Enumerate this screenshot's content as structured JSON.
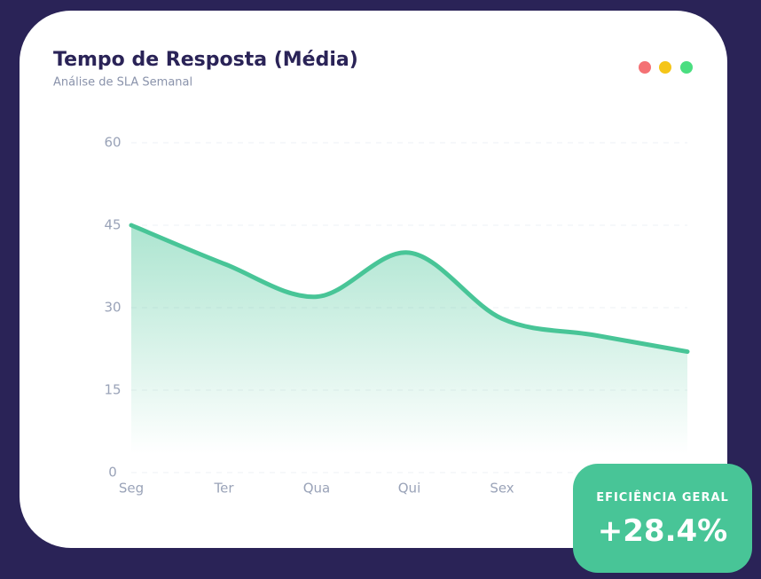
{
  "chart_data": {
    "type": "line",
    "title": "Tempo de Resposta (Média)",
    "subtitle": "Análise de SLA Semanal",
    "categories": [
      "Seg",
      "Ter",
      "Qua",
      "Qui",
      "Sex",
      null,
      null
    ],
    "series": [
      {
        "name": "Tempo de Resposta",
        "color": "#48c597",
        "values": [
          45,
          38,
          32,
          40,
          28,
          25,
          22
        ]
      }
    ],
    "ylim": [
      0,
      60
    ],
    "yticks": [
      0,
      15,
      30,
      45,
      60
    ],
    "grid": true
  },
  "badge": {
    "label": "EFICIÊNCIA GERAL",
    "value": "+28.4%"
  }
}
